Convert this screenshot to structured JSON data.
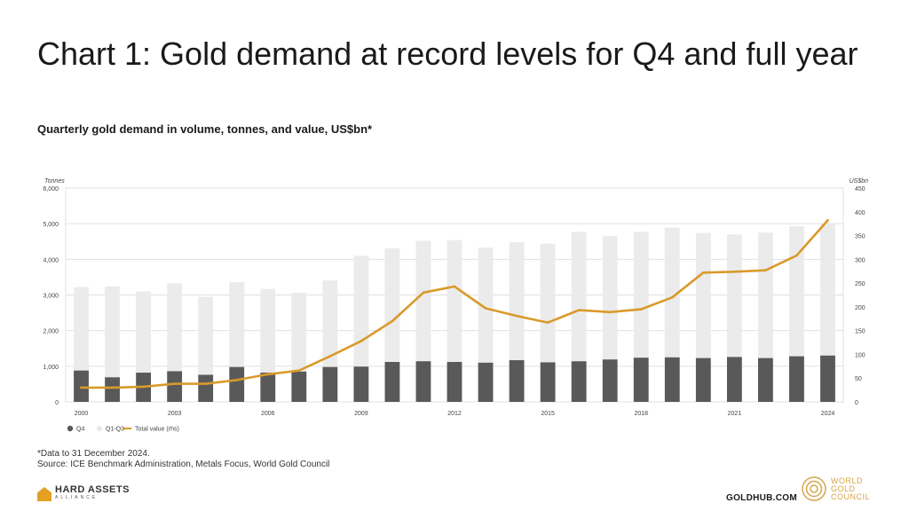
{
  "title": "Chart 1: Gold demand at record levels for Q4 and full year",
  "subtitle": "Quarterly gold demand in volume, tonnes, and value, US$bn*",
  "colors": {
    "q4": "#595959",
    "q1q3": "#ebebeb",
    "total_value": "#d99a2b",
    "grid": "#e0e0e0"
  },
  "chart_data": {
    "type": "bar",
    "left_axis_label": "Tonnes",
    "right_axis_label": "US$bn",
    "x": [
      2000,
      2001,
      2002,
      2003,
      2004,
      2005,
      2006,
      2007,
      2008,
      2009,
      2010,
      2011,
      2012,
      2013,
      2014,
      2015,
      2016,
      2017,
      2018,
      2019,
      2020,
      2021,
      2022,
      2023,
      2024
    ],
    "x_tick_labels": [
      "2000",
      "2003",
      "2006",
      "2009",
      "2012",
      "2015",
      "2018",
      "2021",
      "2024"
    ],
    "x_tick_years": [
      2000,
      2003,
      2006,
      2009,
      2012,
      2015,
      2018,
      2021,
      2024
    ],
    "y_left": {
      "min": 0,
      "max": 6000,
      "ticks": [
        "0",
        "1,000",
        "2,000",
        "3,000",
        "4,000",
        "5,000",
        "6,000"
      ]
    },
    "y_right": {
      "min": 0,
      "max": 450,
      "ticks": [
        "0",
        "50",
        "100",
        "150",
        "200",
        "250",
        "300",
        "350",
        "400",
        "450"
      ]
    },
    "series": [
      {
        "name": "Q4",
        "type": "bar-stacked",
        "values": [
          880,
          690,
          820,
          860,
          760,
          980,
          820,
          850,
          980,
          990,
          1120,
          1140,
          1120,
          1100,
          1170,
          1110,
          1140,
          1190,
          1240,
          1250,
          1230,
          1260,
          1230,
          1280,
          1300
        ]
      },
      {
        "name": "Q1-Q3",
        "type": "bar-stacked",
        "values": [
          2340,
          2550,
          2280,
          2470,
          2190,
          2380,
          2350,
          2210,
          2430,
          3110,
          3190,
          3380,
          3420,
          3230,
          3310,
          3330,
          3630,
          3470,
          3530,
          3640,
          3510,
          3440,
          3520,
          3650,
          3680
        ]
      },
      {
        "name": "Total value (rhs)",
        "type": "line",
        "axis": "right",
        "values": [
          30,
          30,
          32,
          38,
          38,
          46,
          58,
          66,
          96,
          128,
          170,
          230,
          243,
          197,
          181,
          167,
          193,
          189,
          195,
          220,
          272,
          274,
          277,
          308,
          382
        ]
      }
    ],
    "legend": {
      "position": "bottom-left",
      "items": [
        "Q4",
        "Q1-Q3",
        "Total value (rhs)"
      ]
    },
    "grid": true
  },
  "footnote": {
    "line1": "*Data to 31 December 2024.",
    "line2": "Source: ICE Benchmark Administration, Metals Focus, World Gold Council"
  },
  "branding": {
    "hard_assets_main": "HARD ASSETS",
    "hard_assets_sub": "ALLIANCE",
    "goldhub": "GOLDHUB.COM",
    "wgc_line1": "WORLD",
    "wgc_line2": "GOLD",
    "wgc_line3": "COUNCIL"
  }
}
